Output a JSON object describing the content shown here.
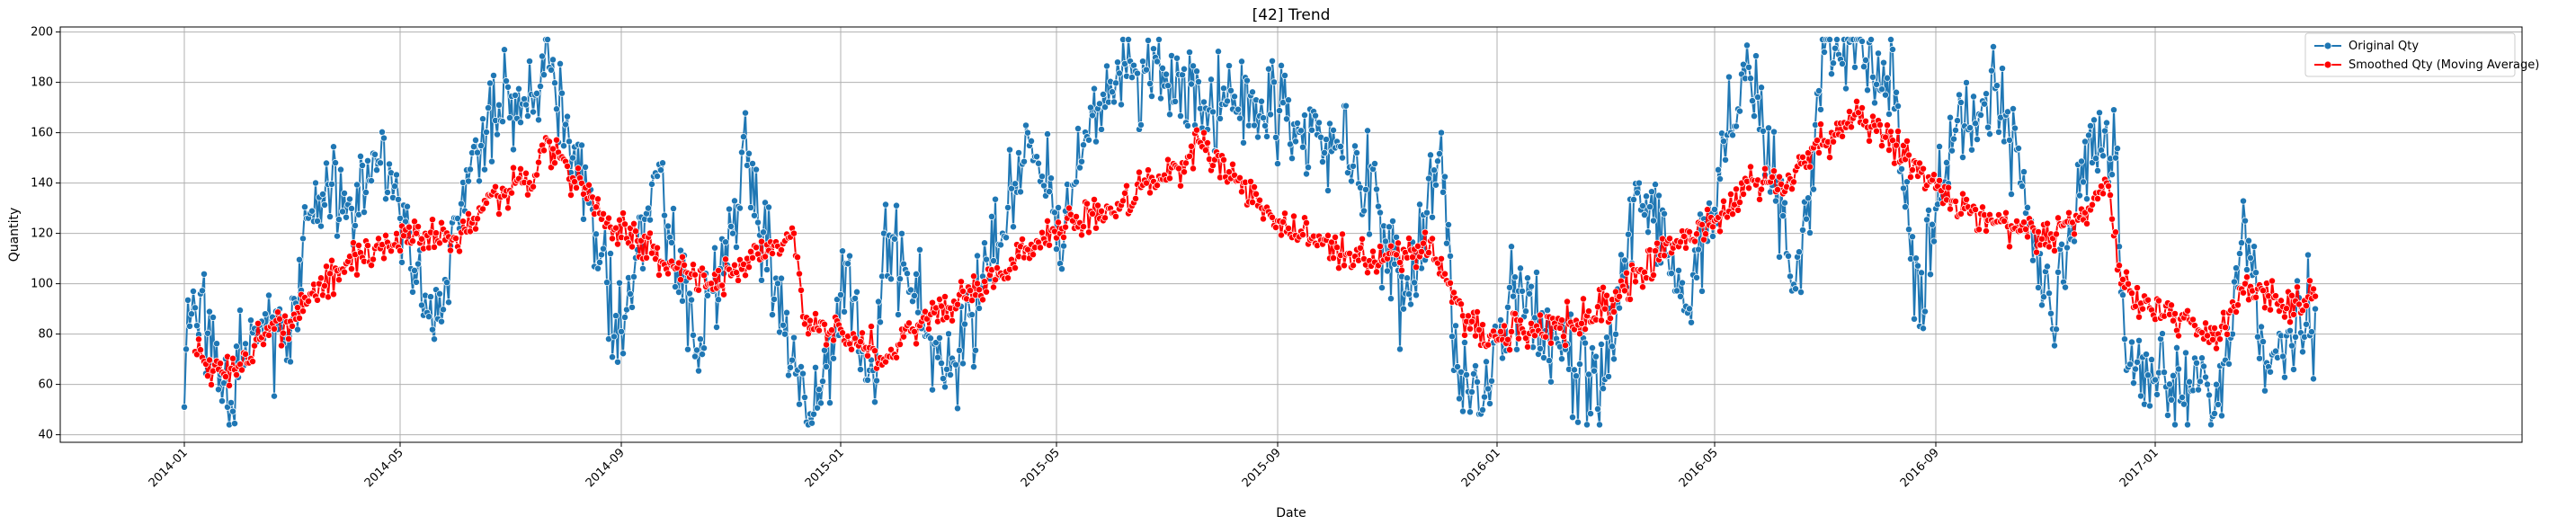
{
  "chart_data": {
    "type": "line",
    "title": "[42] Trend",
    "xlabel": "Date",
    "ylabel": "Quantity",
    "xlim": [
      "2013-10-24",
      "2017-07-24"
    ],
    "ylim": [
      37,
      202
    ],
    "grid": true,
    "legend_position": "top-right",
    "x_ticks": [
      "2014-01",
      "2014-05",
      "2014-09",
      "2015-01",
      "2015-05",
      "2015-09",
      "2016-01",
      "2016-05",
      "2016-09",
      "2017-01"
    ],
    "y_ticks": [
      40,
      60,
      80,
      100,
      120,
      140,
      160,
      180,
      200
    ],
    "x_start": "2014-01-01",
    "x_end": "2017-03-31",
    "series": [
      {
        "name": "Original Qty",
        "color": "#1f77b4",
        "marker": "circle",
        "anchors": [
          [
            "2014-01-01",
            51
          ],
          [
            "2014-01-02",
            74
          ],
          [
            "2014-01-05",
            88
          ],
          [
            "2014-01-10",
            96
          ],
          [
            "2014-01-20",
            58
          ],
          [
            "2014-01-25",
            51
          ],
          [
            "2014-02-15",
            88
          ],
          [
            "2014-03-01",
            69
          ],
          [
            "2014-03-10",
            126
          ],
          [
            "2014-04-20",
            148
          ],
          [
            "2014-05-20",
            78
          ],
          [
            "2014-06-10",
            152
          ],
          [
            "2014-06-25",
            171
          ],
          [
            "2014-07-15",
            175
          ],
          [
            "2014-07-25",
            189
          ],
          [
            "2014-08-05",
            150
          ],
          [
            "2014-09-01",
            81
          ],
          [
            "2014-09-20",
            144
          ],
          [
            "2014-10-15",
            78
          ],
          [
            "2014-11-10",
            147
          ],
          [
            "2014-12-01",
            80
          ],
          [
            "2014-12-10",
            67
          ],
          [
            "2014-12-13",
            45
          ],
          [
            "2014-12-20",
            58
          ],
          [
            "2015-01-05",
            108
          ],
          [
            "2015-01-20",
            53
          ],
          [
            "2015-01-25",
            120
          ],
          [
            "2015-03-01",
            66
          ],
          [
            "2015-04-01",
            120
          ],
          [
            "2015-04-15",
            160
          ],
          [
            "2015-05-05",
            115
          ],
          [
            "2015-05-20",
            170
          ],
          [
            "2015-06-20",
            185
          ],
          [
            "2015-07-10",
            183
          ],
          [
            "2015-07-25",
            169
          ],
          [
            "2015-08-20",
            173
          ],
          [
            "2015-09-20",
            161
          ],
          [
            "2015-10-15",
            152
          ],
          [
            "2015-11-10",
            90
          ],
          [
            "2015-12-01",
            160
          ],
          [
            "2015-12-10",
            67
          ],
          [
            "2015-12-18",
            57
          ],
          [
            "2015-12-25",
            55
          ],
          [
            "2016-01-10",
            95
          ],
          [
            "2016-02-10",
            66
          ],
          [
            "2016-03-01",
            62
          ],
          [
            "2016-03-20",
            140
          ],
          [
            "2016-04-15",
            91
          ],
          [
            "2016-05-10",
            160
          ],
          [
            "2016-05-20",
            186
          ],
          [
            "2016-06-15",
            98
          ],
          [
            "2016-07-01",
            192
          ],
          [
            "2016-07-15",
            196
          ],
          [
            "2016-08-10",
            176
          ],
          [
            "2016-08-20",
            86
          ],
          [
            "2016-09-15",
            172
          ],
          [
            "2016-10-10",
            167
          ],
          [
            "2016-11-05",
            82
          ],
          [
            "2016-11-25",
            159
          ],
          [
            "2016-12-10",
            150
          ],
          [
            "2016-12-15",
            78
          ],
          [
            "2016-12-18",
            68
          ],
          [
            "2017-01-20",
            61
          ],
          [
            "2017-02-05",
            52
          ],
          [
            "2017-02-20",
            125
          ],
          [
            "2017-03-05",
            67
          ],
          [
            "2017-03-31",
            90
          ]
        ]
      },
      {
        "name": "Smoothed Qty (Moving Average)",
        "color": "#ff0000",
        "marker": "circle",
        "anchors": [
          [
            "2014-01-07",
            73
          ],
          [
            "2014-01-20",
            66
          ],
          [
            "2014-02-01",
            68
          ],
          [
            "2014-02-15",
            80
          ],
          [
            "2014-03-01",
            85
          ],
          [
            "2014-03-10",
            92
          ],
          [
            "2014-04-01",
            108
          ],
          [
            "2014-04-20",
            114
          ],
          [
            "2014-05-10",
            120
          ],
          [
            "2014-06-01",
            118
          ],
          [
            "2014-06-20",
            135
          ],
          [
            "2014-07-01",
            137
          ],
          [
            "2014-07-15",
            143
          ],
          [
            "2014-07-22",
            157
          ],
          [
            "2014-08-05",
            142
          ],
          [
            "2014-08-20",
            128
          ],
          [
            "2014-09-10",
            117
          ],
          [
            "2014-10-01",
            106
          ],
          [
            "2014-10-20",
            100
          ],
          [
            "2014-11-10",
            110
          ],
          [
            "2014-12-01",
            117
          ],
          [
            "2014-12-06",
            120
          ],
          [
            "2014-12-12",
            84
          ],
          [
            "2014-12-25",
            80
          ],
          [
            "2015-01-10",
            76
          ],
          [
            "2015-01-25",
            70
          ],
          [
            "2015-02-15",
            85
          ],
          [
            "2015-03-10",
            97
          ],
          [
            "2015-04-01",
            103
          ],
          [
            "2015-04-20",
            117
          ],
          [
            "2015-05-10",
            125
          ],
          [
            "2015-06-01",
            128
          ],
          [
            "2015-06-20",
            140
          ],
          [
            "2015-07-10",
            148
          ],
          [
            "2015-07-20",
            156
          ],
          [
            "2015-08-10",
            141
          ],
          [
            "2015-09-01",
            125
          ],
          [
            "2015-09-20",
            118
          ],
          [
            "2015-10-10",
            112
          ],
          [
            "2015-11-01",
            110
          ],
          [
            "2015-11-25",
            117
          ],
          [
            "2015-12-05",
            100
          ],
          [
            "2015-12-15",
            85
          ],
          [
            "2015-12-25",
            76
          ],
          [
            "2016-01-15",
            82
          ],
          [
            "2016-02-10",
            84
          ],
          [
            "2016-03-01",
            90
          ],
          [
            "2016-03-20",
            105
          ],
          [
            "2016-04-10",
            117
          ],
          [
            "2016-05-01",
            125
          ],
          [
            "2016-05-20",
            138
          ],
          [
            "2016-06-15",
            145
          ],
          [
            "2016-07-05",
            160
          ],
          [
            "2016-07-20",
            168
          ],
          [
            "2016-08-10",
            155
          ],
          [
            "2016-09-01",
            138
          ],
          [
            "2016-09-20",
            128
          ],
          [
            "2016-10-15",
            122
          ],
          [
            "2016-11-05",
            118
          ],
          [
            "2016-11-25",
            130
          ],
          [
            "2016-12-05",
            140
          ],
          [
            "2016-12-13",
            100
          ],
          [
            "2016-12-25",
            90
          ],
          [
            "2017-01-15",
            86
          ],
          [
            "2017-02-05",
            80
          ],
          [
            "2017-02-20",
            100
          ],
          [
            "2017-03-10",
            92
          ],
          [
            "2017-03-31",
            95
          ]
        ]
      }
    ]
  }
}
